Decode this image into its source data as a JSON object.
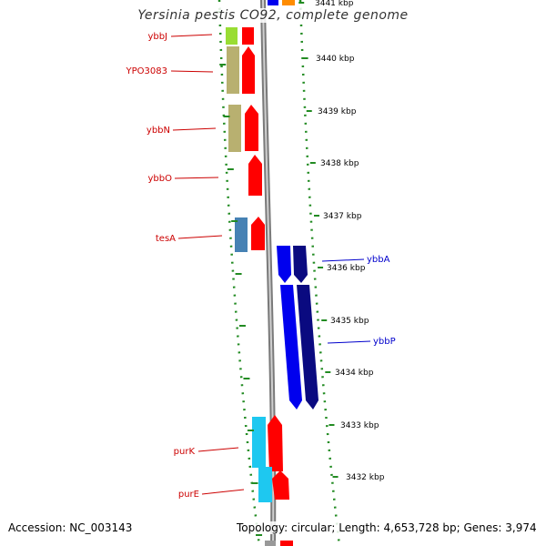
{
  "title": "Yersinia pestis CO92, complete genome",
  "footer": {
    "accession": "Accession: NC_003143",
    "topology": "Topology: circular; Length: 4,653,728 bp; Genes: 3,974"
  },
  "colors": {
    "reverse_gene_label": "#cc0000",
    "forward_gene_label": "#0000cc",
    "cds": "#ff0000",
    "backbone": "#888888",
    "tick": "#228b22",
    "scale_text": "#000000"
  },
  "scale": {
    "labels": [
      "3441 kbp",
      "3440 kbp",
      "3439 kbp",
      "3438 kbp",
      "3437 kbp",
      "3436 kbp",
      "3435 kbp",
      "3434 kbp",
      "3433 kbp",
      "3432 kbp"
    ]
  },
  "genes": {
    "reverse": [
      {
        "label": "ybbJ",
        "color": "#99dd33"
      },
      {
        "label": "YPO3083",
        "color": "#b8b070"
      },
      {
        "label": "ybbN",
        "color": "#b8b070"
      },
      {
        "label": "ybbO",
        "color": ""
      },
      {
        "label": "tesA",
        "color": "#4682b4"
      },
      {
        "label": "purK",
        "color": "#1ec8f0"
      },
      {
        "label": "purE",
        "color": "#1ec8f0"
      }
    ],
    "forward": [
      {
        "label": "ybbA",
        "color": "#0000ee"
      },
      {
        "label": "ybbP",
        "color": "#0000ee"
      }
    ]
  }
}
